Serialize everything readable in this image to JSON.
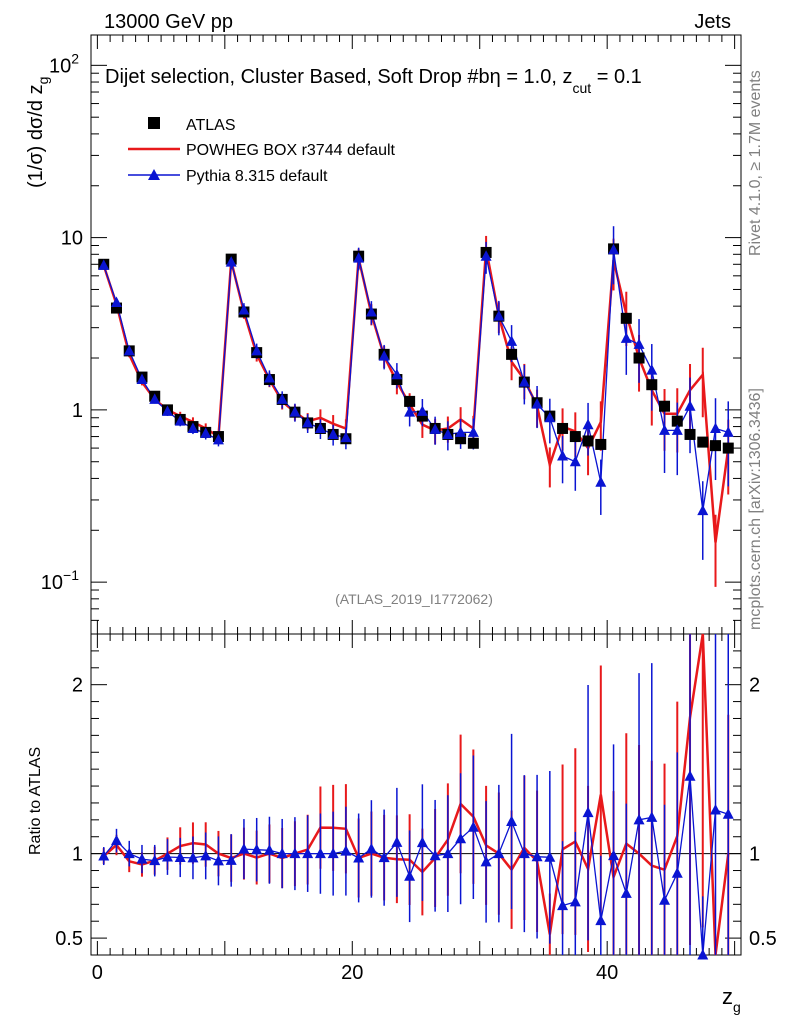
{
  "header": {
    "energy_label": "13000 GeV pp",
    "process_label": "Jets"
  },
  "plot_title": "Dijet selection, Cluster Based, Soft Drop #b",
  "plot_title_tail_prefix": "η = 1.0, z",
  "plot_title_tail_sub": "cut",
  "plot_title_tail_suffix": " = 0.1",
  "analysis_id": "(ATLAS_2019_I1772062)",
  "side_labels": {
    "rivet": "Rivet 4.1.0, ≥ 1.7M events",
    "mcplots": "mcplots.cern.ch [arXiv:1306.3436]"
  },
  "legend": {
    "atlas": "ATLAS",
    "powheg": "POWHEG BOX r3744 default",
    "pythia": "Pythia 8.315 default"
  },
  "colors": {
    "atlas": "#000000",
    "powheg": "#e8191b",
    "pythia": "#0a14d2",
    "grey_text": "#808080"
  },
  "chart_data": {
    "type": "line",
    "title": "Dijet selection, Cluster Based, Soft Drop",
    "xlabel": "z_g",
    "ylabel_main": "(1/σ) dσ/d z_g",
    "ylabel_ratio": "Ratio to ATLAS",
    "xlim": [
      -0.5,
      50.5
    ],
    "ylim_main": [
      0.05,
      150
    ],
    "ylim_ratio": [
      0.4,
      2.3
    ],
    "main_yscale": "log",
    "x_ticks": [
      "0",
      "20",
      "40"
    ],
    "main_y_tick_labels": [
      "10^-1",
      "1",
      "10",
      "10^2"
    ],
    "ratio_y_tick_labels": [
      "0.5",
      "1",
      "2"
    ],
    "x": [
      0.5,
      1.5,
      2.5,
      3.5,
      4.5,
      5.5,
      6.5,
      7.5,
      8.5,
      9.5,
      10.5,
      11.5,
      12.5,
      13.5,
      14.5,
      15.5,
      16.5,
      17.5,
      18.5,
      19.5,
      20.5,
      21.5,
      22.5,
      23.5,
      24.5,
      25.5,
      26.5,
      27.5,
      28.5,
      29.5,
      30.5,
      31.5,
      32.5,
      33.5,
      34.5,
      35.5,
      36.5,
      37.5,
      38.5,
      39.5,
      40.5,
      41.5,
      42.5,
      43.5,
      44.5,
      45.5,
      46.5,
      47.5,
      48.5,
      49.5
    ],
    "series": [
      {
        "name": "ATLAS",
        "style": "squares",
        "values": [
          7.0,
          3.9,
          2.2,
          1.55,
          1.2,
          1.0,
          0.88,
          0.8,
          0.74,
          0.7,
          7.5,
          3.7,
          2.15,
          1.5,
          1.15,
          0.97,
          0.84,
          0.78,
          0.72,
          0.68,
          7.8,
          3.6,
          2.1,
          1.5,
          1.12,
          0.92,
          0.78,
          0.72,
          0.68,
          0.64,
          8.2,
          3.5,
          2.1,
          1.45,
          1.1,
          0.92,
          0.78,
          0.7,
          0.66,
          0.63,
          8.6,
          3.4,
          2.0,
          1.4,
          1.05,
          0.86,
          0.72,
          0.65,
          0.62,
          0.6
        ]
      },
      {
        "name": "POWHEG BOX r3744 default",
        "style": "line",
        "values": [
          6.9,
          4.1,
          2.1,
          1.45,
          1.15,
          1.0,
          0.92,
          0.85,
          0.78,
          0.7,
          7.3,
          3.7,
          2.1,
          1.5,
          1.12,
          0.97,
          0.86,
          0.9,
          0.83,
          0.78,
          7.6,
          3.6,
          2.05,
          1.45,
          1.08,
          0.82,
          0.76,
          0.78,
          0.88,
          0.78,
          8.6,
          3.5,
          1.9,
          1.5,
          1.05,
          0.48,
          0.8,
          0.75,
          0.6,
          0.85,
          7.4,
          3.6,
          2.0,
          1.3,
          0.95,
          0.95,
          1.3,
          1.6,
          0.17,
          0.6
        ]
      },
      {
        "name": "Pythia 8.315 default",
        "style": "triangles",
        "values": [
          6.9,
          4.2,
          2.2,
          1.5,
          1.15,
          0.98,
          0.86,
          0.78,
          0.73,
          0.67,
          7.2,
          3.8,
          2.2,
          1.53,
          1.15,
          0.97,
          0.84,
          0.78,
          0.72,
          0.69,
          7.6,
          3.7,
          2.05,
          1.6,
          0.97,
          0.98,
          0.77,
          0.72,
          0.74,
          0.74,
          7.8,
          3.5,
          2.5,
          1.45,
          1.08,
          0.9,
          0.54,
          0.5,
          0.82,
          0.38,
          8.5,
          2.6,
          2.4,
          1.7,
          0.76,
          0.76,
          1.05,
          0.26,
          0.78,
          0.74
        ]
      }
    ]
  }
}
